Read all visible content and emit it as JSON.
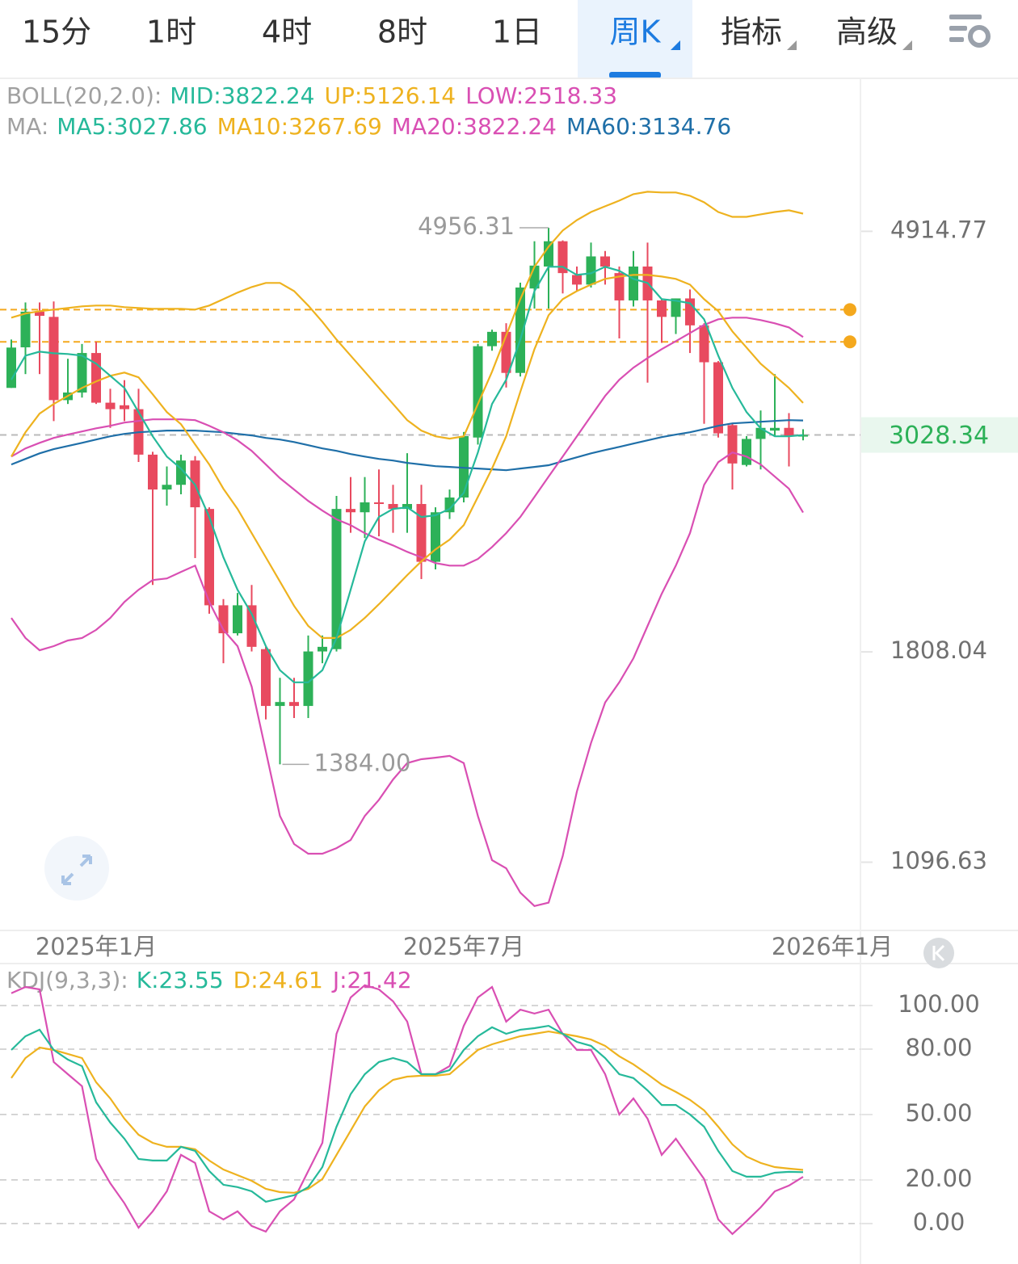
{
  "tabs": [
    {
      "text": "15分"
    },
    {
      "text": "1时"
    },
    {
      "text": "4时"
    },
    {
      "text": "8时"
    },
    {
      "text": "1日"
    },
    {
      "text": "周K",
      "active": true,
      "dropdown": true
    },
    {
      "text": "指标",
      "dropdown": true
    },
    {
      "text": "高级",
      "dropdown": true
    }
  ],
  "chart_data": [
    {
      "type": "candlestick",
      "log_scale": true,
      "ylim": [
        936,
        7030
      ],
      "yticks": [
        4914.77,
        1808.04,
        1096.63
      ],
      "up_color": "#2db158",
      "down_color": "#e84a5f",
      "legend_rows": [
        {
          "label": "BOLL(20,2.0):",
          "items": [
            {
              "text": "MID:3822.24",
              "color": "#26b99a"
            },
            {
              "text": "UP:5126.14",
              "color": "#eeb21f"
            },
            {
              "text": "LOW:2518.33",
              "color": "#d94fb3"
            }
          ]
        },
        {
          "label": "MA:",
          "items": [
            {
              "text": "MA5:3027.86",
              "color": "#26b99a"
            },
            {
              "text": "MA10:3267.69",
              "color": "#eeb21f"
            },
            {
              "text": "MA20:3822.24",
              "color": "#d94fb3"
            },
            {
              "text": "MA60:3134.76",
              "color": "#1f6fa8"
            }
          ]
        }
      ],
      "categories": [
        null,
        null,
        null,
        null,
        null,
        null,
        "2025年1月",
        null,
        null,
        null,
        null,
        null,
        null,
        null,
        null,
        null,
        null,
        null,
        null,
        null,
        null,
        null,
        null,
        null,
        null,
        null,
        null,
        null,
        null,
        null,
        null,
        null,
        "2025年7月",
        null,
        null,
        null,
        null,
        null,
        null,
        null,
        null,
        null,
        null,
        null,
        null,
        null,
        null,
        null,
        null,
        null,
        null,
        null,
        null,
        null,
        null,
        null,
        null
      ],
      "x_right_label": "2026年1月",
      "max_label": "4956.31",
      "min_label": "1384.00",
      "last_price": 3028.34,
      "last_price_color": "#2db158",
      "price_lines": [
        4080,
        3779
      ],
      "price_line_color": "#f4a81d",
      "open": [
        3387,
        3730,
        4060,
        4010,
        3290,
        3350,
        3680,
        3270,
        3250,
        3220,
        2890,
        2660,
        2690,
        2850,
        2540,
        2020,
        1890,
        2020,
        1820,
        1590,
        1605,
        1590,
        1810,
        1820,
        2540,
        2520,
        2580,
        2570,
        2540,
        2570,
        2240,
        2520,
        2610,
        3010,
        3740,
        3870,
        3510,
        4290,
        4520,
        4800,
        4430,
        4330,
        4630,
        4450,
        4170,
        4520,
        4170,
        4010,
        4190,
        3930,
        3600,
        3100,
        2820,
        3000,
        3060,
        3080,
        3020
      ],
      "close": [
        3728,
        4060,
        4020,
        3290,
        3350,
        3680,
        3270,
        3220,
        3220,
        2890,
        2660,
        2690,
        2850,
        2550,
        2020,
        1890,
        2020,
        1830,
        1590,
        1605,
        1590,
        1810,
        1830,
        2540,
        2520,
        2580,
        2570,
        2540,
        2570,
        2240,
        2520,
        2610,
        3020,
        3740,
        3870,
        3510,
        4300,
        4530,
        4800,
        4450,
        4330,
        4630,
        4520,
        4170,
        4520,
        4170,
        4010,
        4190,
        3930,
        3600,
        3040,
        2830,
        3000,
        3080,
        3080,
        3020,
        3028.34
      ],
      "high": [
        3800,
        4150,
        4150,
        4160,
        3630,
        3760,
        3780,
        3380,
        3450,
        3380,
        2910,
        2810,
        2890,
        2880,
        2550,
        2050,
        2080,
        2120,
        1830,
        1700,
        1700,
        1880,
        1880,
        2620,
        2740,
        2740,
        2790,
        2690,
        2900,
        2690,
        2550,
        2660,
        3050,
        3760,
        3890,
        3950,
        4350,
        4800,
        4956.31,
        4810,
        4520,
        4785,
        4690,
        4520,
        4690,
        4785,
        4190,
        4190,
        4280,
        3950,
        3610,
        3110,
        3020,
        3210,
        3500,
        3190,
        3070
      ],
      "low": [
        3387,
        3500,
        3500,
        3130,
        3260,
        3310,
        3260,
        3080,
        3130,
        2840,
        2120,
        2560,
        2630,
        2260,
        1980,
        1760,
        1880,
        1810,
        1540,
        1384,
        1545,
        1545,
        1760,
        1810,
        2400,
        2370,
        2380,
        2400,
        2400,
        2150,
        2200,
        2480,
        2580,
        2960,
        3700,
        3390,
        3480,
        4090,
        4090,
        4240,
        4270,
        4300,
        4330,
        3810,
        4110,
        3430,
        3770,
        3850,
        3680,
        3110,
        3010,
        2660,
        2810,
        2790,
        3020,
        2810,
        2990
      ],
      "series": [
        {
          "color": "#eeb21f",
          "values": [
            4003,
            4042,
            4065,
            4080,
            4096,
            4112,
            4120,
            4120,
            4104,
            4096,
            4088,
            4088,
            4088,
            4080,
            4120,
            4183,
            4248,
            4305,
            4347,
            4347,
            4264,
            4120,
            3964,
            3800,
            3657,
            3520,
            3387,
            3260,
            3137,
            3060,
            3019,
            3002,
            3019,
            3260,
            3520,
            3837,
            4183,
            4517,
            4739,
            4924,
            5048,
            5146,
            5216,
            5287,
            5369,
            5400,
            5390,
            5390,
            5348,
            5266,
            5146,
            5087,
            5087,
            5117,
            5146,
            5166,
            5126.14
          ]
        },
        {
          "color": "#d94fb3",
          "values": [
            1960,
            1869,
            1815,
            1833,
            1858,
            1869,
            1905,
            1960,
            2036,
            2096,
            2145,
            2153,
            2187,
            2220,
            2036,
            1905,
            1833,
            1665,
            1428,
            1224,
            1145,
            1119,
            1119,
            1134,
            1156,
            1224,
            1272,
            1335,
            1388,
            1401,
            1406,
            1412,
            1388,
            1224,
            1102,
            1081,
            1020,
            988,
            996,
            1113,
            1297,
            1456,
            1603,
            1682,
            1781,
            1923,
            2076,
            2220,
            2398,
            2690,
            2839,
            2905,
            2877,
            2823,
            2743,
            2665,
            2518.33
          ]
        },
        {
          "color": "#1f6fa8",
          "values": [
            2823,
            2861,
            2899,
            2928,
            2950,
            2972,
            2996,
            3019,
            3036,
            3048,
            3054,
            3060,
            3060,
            3060,
            3054,
            3048,
            3036,
            3025,
            3007,
            2996,
            2978,
            2956,
            2933,
            2916,
            2894,
            2877,
            2861,
            2850,
            2834,
            2823,
            2812,
            2807,
            2801,
            2796,
            2791,
            2785,
            2796,
            2807,
            2818,
            2845,
            2872,
            2899,
            2922,
            2944,
            2967,
            2990,
            3013,
            3031,
            3048,
            3071,
            3095,
            3113,
            3119,
            3125,
            3131,
            3137,
            3134.76
          ]
        },
        {
          "color": "#d94fb3",
          "values": [
            2877,
            2933,
            2972,
            3007,
            3031,
            3054,
            3077,
            3095,
            3119,
            3131,
            3143,
            3143,
            3143,
            3137,
            3095,
            3048,
            2990,
            2916,
            2823,
            2733,
            2660,
            2589,
            2530,
            2478,
            2444,
            2398,
            2361,
            2329,
            2294,
            2264,
            2233,
            2220,
            2220,
            2255,
            2320,
            2398,
            2492,
            2614,
            2743,
            2877,
            3019,
            3168,
            3323,
            3453,
            3554,
            3636,
            3714,
            3785,
            3859,
            3934,
            3987,
            4003,
            4003,
            3980,
            3949,
            3911,
            3822.24
          ]
        },
        {
          "color": "#eeb21f",
          "values": [
            2877,
            3048,
            3186,
            3260,
            3323,
            3387,
            3440,
            3486,
            3513,
            3473,
            3336,
            3198,
            3107,
            2961,
            2823,
            2665,
            2540,
            2398,
            2264,
            2137,
            2017,
            1923,
            1869,
            1869,
            1905,
            1960,
            2025,
            2096,
            2170,
            2242,
            2307,
            2361,
            2444,
            2614,
            2796,
            3019,
            3355,
            3714,
            4026,
            4183,
            4264,
            4330,
            4389,
            4414,
            4431,
            4431,
            4414,
            4389,
            4330,
            4183,
            4065,
            3874,
            3728,
            3588,
            3486,
            3387,
            3267.69
          ]
        },
        {
          "color": "#26b99a",
          "values": [
            3453,
            3657,
            3692,
            3678,
            3671,
            3657,
            3588,
            3486,
            3387,
            3198,
            3019,
            2877,
            2796,
            2690,
            2492,
            2264,
            2096,
            1979,
            1833,
            1731,
            1682,
            1682,
            1731,
            1869,
            2096,
            2352,
            2492,
            2540,
            2550,
            2492,
            2502,
            2540,
            2639,
            2905,
            3260,
            3453,
            3800,
            4264,
            4517,
            4517,
            4431,
            4448,
            4517,
            4474,
            4389,
            4347,
            4183,
            4167,
            4143,
            3987,
            3657,
            3387,
            3198,
            3077,
            3019,
            3019,
            3027.86
          ]
        }
      ]
    },
    {
      "type": "line",
      "ylim": [
        -16.7,
        118.5
      ],
      "yticks": [
        {
          "value": 100,
          "label": "100.00"
        },
        {
          "value": 80,
          "label": "80.00"
        },
        {
          "value": 50,
          "label": "50.00"
        },
        {
          "value": 20,
          "label": "20.00"
        },
        {
          "value": 0,
          "label": "0.00"
        }
      ],
      "grid": true,
      "legend_rows": [
        {
          "label": "KDJ(9,3,3):",
          "items": [
            {
              "text": "K:23.55",
              "color": "#26b99a"
            },
            {
              "text": "D:24.61",
              "color": "#eeb21f"
            },
            {
              "text": "J:21.42",
              "color": "#d94fb3"
            }
          ]
        }
      ],
      "series": [
        {
          "color": "#d94fb3",
          "values": [
            105.6,
            108.5,
            107.4,
            74.1,
            68.5,
            63.0,
            29.6,
            18.5,
            9.3,
            -1.9,
            5.6,
            14.8,
            31.5,
            27.8,
            5.6,
            1.9,
            5.6,
            -1.1,
            -3.7,
            5.6,
            11.1,
            24.1,
            37.0,
            87.0,
            103.7,
            109.3,
            107.4,
            101.9,
            92.6,
            68.5,
            68.5,
            72.2,
            90.7,
            103.7,
            108.5,
            92.6,
            98.1,
            96.3,
            98.1,
            87.0,
            79.6,
            79.6,
            68.5,
            50.0,
            57.4,
            48.1,
            31.5,
            38.9,
            29.6,
            20.4,
            1.9,
            -4.8,
            1.1,
            7.4,
            14.8,
            17.4,
            21.42
          ]
        },
        {
          "color": "#eeb21f",
          "values": [
            66.7,
            75.9,
            80.7,
            79.6,
            77.8,
            75.9,
            64.8,
            57.4,
            48.1,
            40.7,
            37.0,
            35.2,
            35.2,
            34.1,
            28.9,
            24.8,
            22.2,
            19.6,
            15.9,
            14.4,
            14.1,
            15.9,
            20.4,
            31.5,
            42.6,
            53.7,
            61.1,
            65.9,
            67.4,
            67.8,
            67.8,
            68.5,
            74.1,
            79.6,
            82.2,
            84.1,
            85.9,
            87.0,
            88.1,
            87.0,
            85.9,
            84.4,
            81.5,
            76.7,
            73.0,
            68.5,
            63.7,
            60.4,
            56.7,
            51.9,
            44.4,
            36.3,
            30.7,
            27.8,
            25.9,
            25.2,
            24.61
          ]
        },
        {
          "color": "#26b99a",
          "values": [
            79.6,
            85.9,
            88.9,
            79.6,
            75.2,
            72.2,
            55.6,
            46.3,
            38.9,
            29.6,
            28.9,
            28.9,
            35.2,
            33.3,
            24.1,
            17.8,
            16.7,
            14.8,
            10.0,
            11.5,
            13.0,
            16.7,
            25.9,
            44.4,
            59.3,
            68.5,
            74.1,
            75.9,
            74.1,
            68.5,
            68.5,
            70.4,
            79.6,
            85.9,
            90.0,
            87.0,
            88.9,
            89.6,
            90.7,
            87.0,
            83.3,
            81.5,
            75.9,
            68.5,
            66.7,
            61.1,
            54.4,
            54.4,
            50.0,
            44.4,
            33.3,
            24.1,
            21.5,
            21.5,
            23.3,
            23.7,
            23.55
          ]
        }
      ]
    }
  ]
}
